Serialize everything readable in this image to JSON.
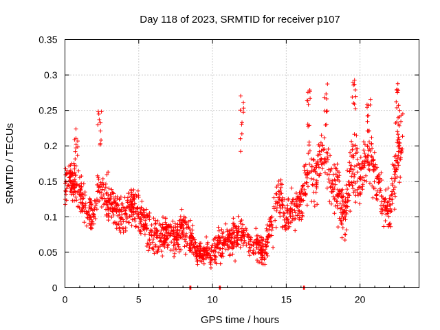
{
  "chart_data": {
    "type": "scatter",
    "title": "Day 118 of 2023, SRMTID for receiver p107",
    "xlabel": "GPS time / hours",
    "ylabel": "SRMTID / TECUs",
    "xlim": [
      0,
      24
    ],
    "ylim": [
      0,
      0.35
    ],
    "xticks": [
      0,
      5,
      10,
      15,
      20
    ],
    "xtick_labels": [
      "0",
      "5",
      "10",
      "15",
      "20"
    ],
    "yticks": [
      0,
      0.05,
      0.1,
      0.15,
      0.2,
      0.25,
      0.3,
      0.35
    ],
    "ytick_labels": [
      "0",
      "0.05",
      "0.1",
      "0.15",
      "0.2",
      "0.25",
      "0.3",
      "0.35"
    ],
    "grid": true,
    "marker": "+",
    "series": [
      {
        "name": "SRMTID",
        "color": "#ff0000",
        "profile": [
          [
            0.0,
            0.14,
            0.03
          ],
          [
            0.5,
            0.15,
            0.03
          ],
          [
            1.0,
            0.13,
            0.03
          ],
          [
            1.5,
            0.11,
            0.025
          ],
          [
            2.0,
            0.1,
            0.025
          ],
          [
            2.3,
            0.14,
            0.04
          ],
          [
            2.5,
            0.14,
            0.03
          ],
          [
            3.0,
            0.12,
            0.03
          ],
          [
            3.5,
            0.11,
            0.03
          ],
          [
            4.0,
            0.1,
            0.03
          ],
          [
            4.5,
            0.12,
            0.03
          ],
          [
            5.0,
            0.11,
            0.03
          ],
          [
            5.5,
            0.09,
            0.03
          ],
          [
            6.0,
            0.07,
            0.025
          ],
          [
            6.5,
            0.07,
            0.025
          ],
          [
            7.0,
            0.08,
            0.025
          ],
          [
            7.5,
            0.07,
            0.025
          ],
          [
            8.0,
            0.09,
            0.025
          ],
          [
            8.5,
            0.07,
            0.025
          ],
          [
            9.0,
            0.05,
            0.015
          ],
          [
            9.5,
            0.05,
            0.015
          ],
          [
            10.0,
            0.05,
            0.02
          ],
          [
            10.5,
            0.06,
            0.02
          ],
          [
            11.0,
            0.07,
            0.02
          ],
          [
            11.5,
            0.07,
            0.025
          ],
          [
            12.0,
            0.08,
            0.025
          ],
          [
            12.5,
            0.06,
            0.02
          ],
          [
            13.0,
            0.06,
            0.02
          ],
          [
            13.5,
            0.05,
            0.02
          ],
          [
            14.0,
            0.09,
            0.03
          ],
          [
            14.5,
            0.13,
            0.03
          ],
          [
            15.0,
            0.1,
            0.025
          ],
          [
            15.5,
            0.11,
            0.025
          ],
          [
            16.0,
            0.12,
            0.03
          ],
          [
            16.5,
            0.17,
            0.035
          ],
          [
            17.0,
            0.15,
            0.035
          ],
          [
            17.5,
            0.19,
            0.04
          ],
          [
            18.0,
            0.15,
            0.04
          ],
          [
            18.5,
            0.13,
            0.035
          ],
          [
            19.0,
            0.1,
            0.035
          ],
          [
            19.5,
            0.18,
            0.05
          ],
          [
            20.0,
            0.15,
            0.04
          ],
          [
            20.5,
            0.19,
            0.04
          ],
          [
            21.0,
            0.16,
            0.035
          ],
          [
            21.5,
            0.13,
            0.035
          ],
          [
            22.0,
            0.1,
            0.03
          ],
          [
            22.5,
            0.19,
            0.05
          ],
          [
            22.9,
            0.21,
            0.05
          ]
        ],
        "n_points": 1800,
        "seed": 118,
        "features": [
          {
            "x": 0.75,
            "y_lo": 0.18,
            "y_hi": 0.225
          },
          {
            "x": 2.35,
            "y_lo": 0.19,
            "y_hi": 0.25
          },
          {
            "x": 12.0,
            "y_lo": 0.18,
            "y_hi": 0.275
          },
          {
            "x": 16.5,
            "y_lo": 0.22,
            "y_hi": 0.28
          },
          {
            "x": 17.7,
            "y_lo": 0.22,
            "y_hi": 0.29
          },
          {
            "x": 19.6,
            "y_lo": 0.24,
            "y_hi": 0.305
          },
          {
            "x": 20.6,
            "y_lo": 0.22,
            "y_hi": 0.27
          },
          {
            "x": 22.5,
            "y_lo": 0.23,
            "y_hi": 0.3
          }
        ],
        "zero_points": [
          8.5,
          10.5,
          16.2
        ]
      }
    ]
  }
}
